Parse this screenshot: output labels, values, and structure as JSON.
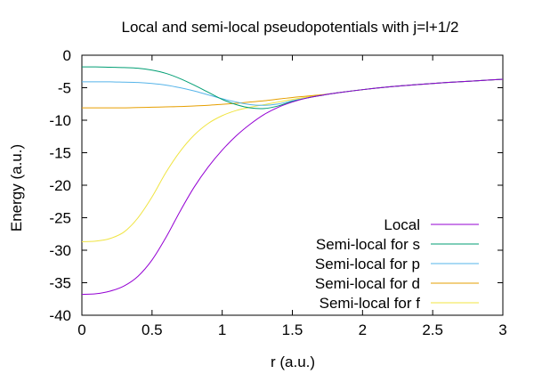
{
  "chart_data": {
    "type": "line",
    "title": "Local and semi-local pseudopotentials with j=l+1/2",
    "xlabel": "r (a.u.)",
    "ylabel": "Energy (a.u.)",
    "xlim": [
      0,
      3
    ],
    "ylim": [
      -40,
      0
    ],
    "xticks": [
      0,
      0.5,
      1,
      1.5,
      2,
      2.5,
      3
    ],
    "xtick_labels": [
      "0",
      "0.5",
      "1",
      "1.5",
      "2",
      "2.5",
      "3"
    ],
    "yticks": [
      0,
      -5,
      -10,
      -15,
      -20,
      -25,
      -30,
      -35,
      -40
    ],
    "ytick_labels": [
      "0",
      "-5",
      "-10",
      "-15",
      "-20",
      "-25",
      "-30",
      "-35",
      "-40"
    ],
    "grid": false,
    "legend_position": "bottom-right",
    "x": [
      0,
      0.1,
      0.2,
      0.3,
      0.4,
      0.5,
      0.6,
      0.7,
      0.8,
      0.9,
      1.0,
      1.1,
      1.2,
      1.3,
      1.4,
      1.5,
      1.6,
      1.7,
      1.8,
      2.0,
      2.2,
      2.4,
      2.6,
      2.8,
      3.0
    ],
    "series": [
      {
        "name": "Local",
        "color": "#9400d3",
        "values": [
          -36.8,
          -36.7,
          -36.3,
          -35.5,
          -34.0,
          -31.5,
          -28.0,
          -24.0,
          -20.3,
          -17.2,
          -14.6,
          -12.4,
          -10.6,
          -9.1,
          -8.0,
          -7.2,
          -6.6,
          -6.2,
          -5.85,
          -5.3,
          -4.85,
          -4.5,
          -4.2,
          -3.95,
          -3.7
        ]
      },
      {
        "name": "Semi-local for s",
        "color": "#009e73",
        "values": [
          -1.8,
          -1.8,
          -1.85,
          -1.9,
          -2.0,
          -2.3,
          -2.8,
          -3.6,
          -4.6,
          -5.7,
          -6.8,
          -7.6,
          -8.1,
          -8.2,
          -7.8,
          -7.1,
          -6.6,
          -6.2,
          -5.85,
          -5.3,
          -4.85,
          -4.5,
          -4.2,
          -3.95,
          -3.7
        ]
      },
      {
        "name": "Semi-local for p",
        "color": "#56b4e9",
        "values": [
          -4.1,
          -4.1,
          -4.1,
          -4.15,
          -4.2,
          -4.35,
          -4.6,
          -5.0,
          -5.5,
          -6.1,
          -6.7,
          -7.2,
          -7.6,
          -7.7,
          -7.5,
          -7.0,
          -6.6,
          -6.2,
          -5.85,
          -5.3,
          -4.85,
          -4.5,
          -4.2,
          -3.95,
          -3.7
        ]
      },
      {
        "name": "Semi-local for d",
        "color": "#e69f00",
        "values": [
          -8.1,
          -8.1,
          -8.1,
          -8.1,
          -8.05,
          -8.0,
          -7.95,
          -7.9,
          -7.8,
          -7.7,
          -7.55,
          -7.4,
          -7.2,
          -7.0,
          -6.75,
          -6.5,
          -6.3,
          -6.1,
          -5.85,
          -5.3,
          -4.85,
          -4.5,
          -4.2,
          -3.95,
          -3.7
        ]
      },
      {
        "name": "Semi-local for f",
        "color": "#f0e442",
        "values": [
          -28.7,
          -28.6,
          -28.2,
          -27.2,
          -25.0,
          -21.8,
          -18.0,
          -14.8,
          -12.3,
          -10.5,
          -9.3,
          -8.5,
          -8.0,
          -7.6,
          -7.2,
          -6.8,
          -6.45,
          -6.15,
          -5.85,
          -5.3,
          -4.85,
          -4.5,
          -4.2,
          -3.95,
          -3.7
        ]
      }
    ]
  }
}
